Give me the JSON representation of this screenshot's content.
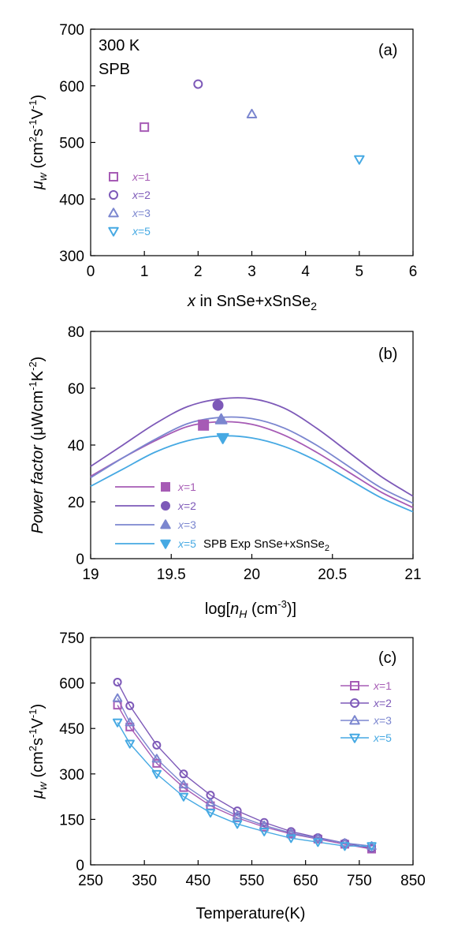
{
  "colors": {
    "x1": "#a65bb5",
    "x2": "#7d59b8",
    "x3": "#7b86cf",
    "x5": "#46a9e3"
  },
  "chart_data": [
    {
      "panel": "(a)",
      "type": "scatter",
      "annotations": [
        "300 K",
        "SPB"
      ],
      "xlabel": {
        "pre": "x",
        "mid": " in SnSe+xSnSe",
        "sub": "2"
      },
      "ylabel": {
        "sym": "μ",
        "symsub": "w",
        "unit": " (cm",
        "sup1": "2",
        "mid": "s",
        "sup2": "-1",
        "mid2": "V",
        "sup3": "-1",
        "end": ")"
      },
      "xlim": [
        0,
        6
      ],
      "ylim": [
        300,
        700
      ],
      "xticks": [
        "0",
        "1",
        "2",
        "3",
        "4",
        "5",
        "6"
      ],
      "yticks": [
        "300",
        "400",
        "500",
        "600",
        "700"
      ],
      "series": [
        {
          "name": "x=1",
          "nv": "1",
          "marker": "square",
          "color": "#a65bb5",
          "x": [
            1
          ],
          "y": [
            527
          ]
        },
        {
          "name": "x=2",
          "nv": "2",
          "marker": "circle",
          "color": "#7d59b8",
          "x": [
            2
          ],
          "y": [
            603
          ]
        },
        {
          "name": "x=3",
          "nv": "3",
          "marker": "triangle-up",
          "color": "#7b86cf",
          "x": [
            3
          ],
          "y": [
            550
          ]
        },
        {
          "name": "x=5",
          "nv": "5",
          "marker": "triangle-down",
          "color": "#46a9e3",
          "x": [
            5
          ],
          "y": [
            470
          ]
        }
      ]
    },
    {
      "panel": "(b)",
      "type": "line",
      "note": {
        "main": "SPB Exp  SnSe+xSnSe",
        "sub": "2"
      },
      "xlabel": {
        "pre": "log[",
        "sym": "n",
        "symsub": "H",
        "mid": " (cm",
        "sup": "-3",
        "end": ")]"
      },
      "ylabel": {
        "sym": "Power factor",
        "unit": " (μWcm",
        "sup1": "-1",
        "mid": "K",
        "sup2": "-2",
        "end": ")"
      },
      "xlim": [
        19,
        21
      ],
      "ylim": [
        0,
        80
      ],
      "xticks": [
        "19",
        "19.5",
        "20",
        "20.5",
        "21"
      ],
      "yticks": [
        "0",
        "20",
        "40",
        "60",
        "80"
      ],
      "series": [
        {
          "name": "x=1",
          "nv": "1",
          "color": "#a65bb5",
          "marker": "square",
          "curve_x": [
            19.0,
            19.2,
            19.4,
            19.6,
            19.8,
            20.0,
            20.2,
            20.4,
            20.6,
            20.8,
            21.0
          ],
          "curve_y": [
            29,
            35.5,
            41.5,
            46.5,
            48.2,
            47.3,
            43.5,
            37.5,
            30.5,
            23.5,
            18
          ],
          "exp_x": [
            19.7
          ],
          "exp_y": [
            47
          ]
        },
        {
          "name": "x=2",
          "nv": "2",
          "color": "#7d59b8",
          "marker": "circle",
          "curve_x": [
            19.0,
            19.2,
            19.4,
            19.6,
            19.8,
            20.0,
            20.2,
            20.4,
            20.6,
            20.8,
            21.0
          ],
          "curve_y": [
            32.5,
            40,
            47.5,
            53.5,
            56.2,
            56.3,
            53,
            46,
            37.5,
            29,
            22
          ],
          "exp_x": [
            19.79
          ],
          "exp_y": [
            54
          ]
        },
        {
          "name": "x=3",
          "nv": "3",
          "color": "#7b86cf",
          "marker": "triangle-up",
          "curve_x": [
            19.0,
            19.2,
            19.4,
            19.6,
            19.8,
            20.0,
            20.2,
            20.4,
            20.6,
            20.8,
            21.0
          ],
          "curve_y": [
            28.5,
            35.5,
            42,
            47.5,
            49.7,
            49.3,
            46,
            40,
            32.5,
            25,
            19.5
          ],
          "exp_x": [
            19.81
          ],
          "exp_y": [
            49
          ]
        },
        {
          "name": "x=5",
          "nv": "5",
          "color": "#46a9e3",
          "marker": "triangle-down",
          "curve_x": [
            19.0,
            19.2,
            19.4,
            19.6,
            19.8,
            20.0,
            20.2,
            20.4,
            20.6,
            20.8,
            21.0
          ],
          "curve_y": [
            25.5,
            31.5,
            37.5,
            41.5,
            43.2,
            42.5,
            39.5,
            34.5,
            28,
            21.5,
            16.5
          ],
          "exp_x": [
            19.82
          ],
          "exp_y": [
            42.5
          ]
        }
      ]
    },
    {
      "panel": "(c)",
      "type": "line",
      "xlabel": {
        "main": "Temperature(K)"
      },
      "ylabel": {
        "sym": "μ",
        "symsub": "w",
        "unit": " (cm",
        "sup1": "2",
        "mid": "s",
        "sup2": "-1",
        "mid2": "V",
        "sup3": "-1",
        "end": ")"
      },
      "xlim": [
        250,
        850
      ],
      "ylim": [
        0,
        750
      ],
      "xticks": [
        "250",
        "350",
        "450",
        "550",
        "650",
        "750",
        "850"
      ],
      "yticks": [
        "0",
        "150",
        "300",
        "450",
        "600",
        "750"
      ],
      "series": [
        {
          "name": "x=1",
          "nv": "1",
          "marker": "square",
          "color": "#a65bb5",
          "x": [
            300,
            323,
            373,
            423,
            473,
            523,
            573,
            623,
            673,
            723,
            773
          ],
          "y": [
            527,
            455,
            335,
            255,
            195,
            155,
            125,
            102,
            85,
            68,
            52
          ]
        },
        {
          "name": "x=2",
          "nv": "2",
          "marker": "circle",
          "color": "#7d59b8",
          "x": [
            300,
            323,
            373,
            423,
            473,
            523,
            573,
            623,
            673,
            723,
            773
          ],
          "y": [
            603,
            525,
            395,
            300,
            230,
            178,
            140,
            110,
            90,
            72,
            55
          ]
        },
        {
          "name": "x=3",
          "nv": "3",
          "marker": "triangle-up",
          "color": "#7b86cf",
          "x": [
            300,
            323,
            373,
            423,
            473,
            523,
            573,
            623,
            673,
            723,
            773
          ],
          "y": [
            550,
            470,
            350,
            265,
            205,
            162,
            130,
            105,
            87,
            72,
            62
          ]
        },
        {
          "name": "x=5",
          "nv": "5",
          "marker": "triangle-down",
          "color": "#46a9e3",
          "x": [
            300,
            323,
            373,
            423,
            473,
            523,
            573,
            623,
            673,
            723,
            773
          ],
          "y": [
            470,
            400,
            300,
            225,
            172,
            135,
            110,
            88,
            75,
            62,
            62
          ]
        }
      ]
    }
  ]
}
